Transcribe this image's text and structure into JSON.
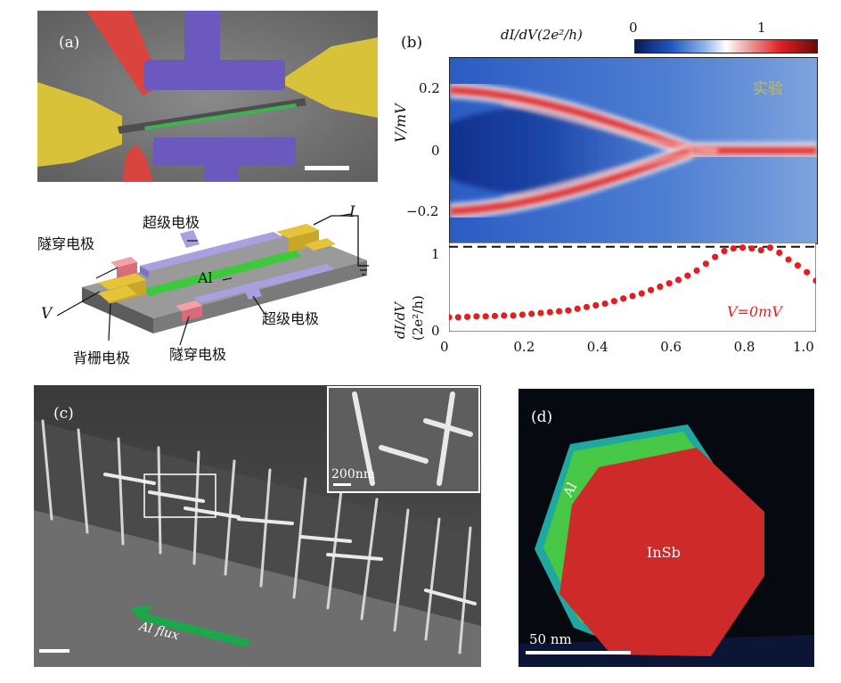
{
  "panels": {
    "a": {
      "label": "(a)"
    },
    "b": {
      "label": "(b)"
    },
    "c": {
      "label": "(c)"
    },
    "d": {
      "label": "(d)"
    }
  },
  "schematic": {
    "tunnel_electrode_top": "隧穿电极",
    "super_electrode_top": "超级电极",
    "al_label": "Al",
    "super_electrode_bottom": "超级电极",
    "tunnel_electrode_bottom": "隧穿电极",
    "back_gate": "背栅电极",
    "v_label": "V",
    "i_label": "I"
  },
  "colorbar": {
    "label": "dI/dV(2e²/h)",
    "tick_min": "0",
    "tick_max": "1"
  },
  "heatmap": {
    "ylabel": "V/mV",
    "yticks": [
      "0.2",
      "0",
      "−0.2"
    ],
    "annotation": "实验"
  },
  "lineplot": {
    "ylabel_top": "dI/dV",
    "ylabel_bottom": "(2e²/h)",
    "yticks": [
      "1",
      "0"
    ],
    "xticks": [
      "0",
      "0.2",
      "0.4",
      "0.6",
      "0.8",
      "1.0"
    ],
    "legend": "V=0mV"
  },
  "sem_c": {
    "inset_scale": "200nm",
    "flux_label": "Al flux"
  },
  "sem_d": {
    "al_label": "Al",
    "insb_label": "InSb",
    "scale": "50 nm"
  },
  "colors": {
    "red_marker": "#e02020",
    "sem_gray": "#7a7a7a",
    "al_green": "#3cc93c",
    "insb_red": "#d42a2a",
    "accent_green": "#1aa84a"
  },
  "chart_data": {
    "type": "scatter",
    "x": [
      0.0,
      0.025,
      0.05,
      0.075,
      0.1,
      0.125,
      0.15,
      0.175,
      0.2,
      0.225,
      0.25,
      0.275,
      0.3,
      0.325,
      0.35,
      0.375,
      0.4,
      0.425,
      0.45,
      0.475,
      0.5,
      0.525,
      0.55,
      0.575,
      0.6,
      0.625,
      0.65,
      0.675,
      0.7,
      0.725,
      0.75,
      0.775,
      0.8,
      0.825,
      0.85,
      0.875,
      0.9,
      0.925,
      0.95,
      0.975,
      1.0
    ],
    "series": [
      {
        "name": "V=0mV",
        "values": [
          0.17,
          0.17,
          0.175,
          0.18,
          0.18,
          0.185,
          0.19,
          0.19,
          0.2,
          0.21,
          0.22,
          0.23,
          0.24,
          0.25,
          0.27,
          0.29,
          0.31,
          0.33,
          0.36,
          0.39,
          0.42,
          0.45,
          0.49,
          0.53,
          0.57,
          0.61,
          0.66,
          0.72,
          0.8,
          0.88,
          0.95,
          0.98,
          0.99,
          0.98,
          0.96,
          0.99,
          0.93,
          0.85,
          0.78,
          0.7,
          0.6
        ]
      }
    ],
    "xlim": [
      0,
      1.0
    ],
    "ylim": [
      0,
      1.05
    ],
    "reference_line": 1.0
  }
}
